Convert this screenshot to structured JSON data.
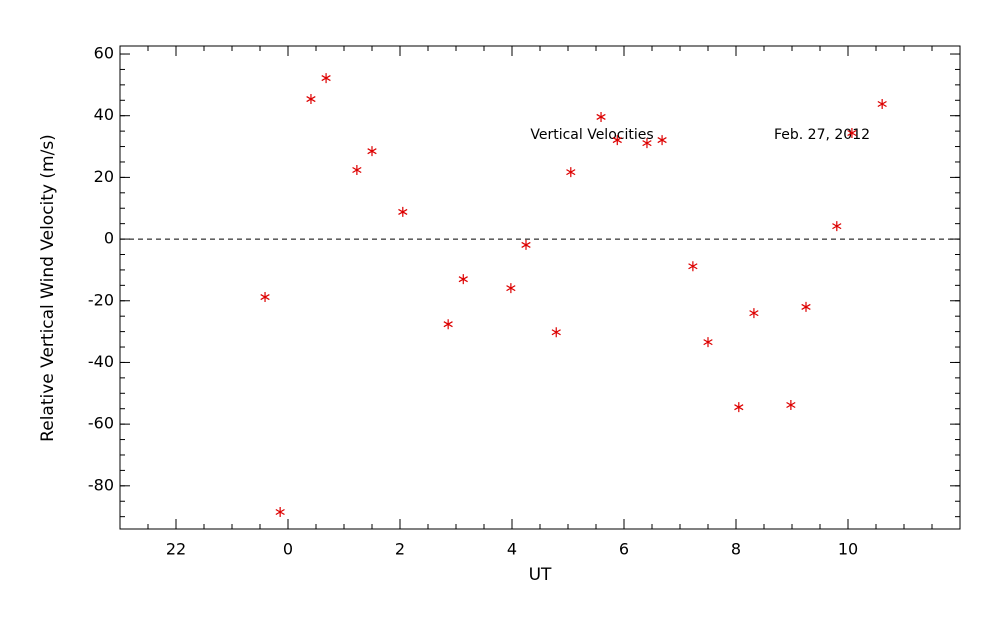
{
  "chart_data": {
    "type": "scatter",
    "xlabel": "UT",
    "ylabel": "Relative Vertical Wind Velocity (m/s)",
    "annotations": [
      "Vertical Velocities",
      "Feb. 27, 2012"
    ],
    "color": "#dd0000",
    "xlim": [
      -3,
      12
    ],
    "ylim": [
      -94,
      62.6
    ],
    "xticks": [
      {
        "value": -2,
        "label": "22"
      },
      0,
      2,
      4,
      6,
      8,
      10
    ],
    "yticks": [
      -80,
      -60,
      -40,
      -20,
      0,
      20,
      40,
      60
    ],
    "x": [
      -0.41,
      -0.14,
      0.41,
      0.68,
      1.23,
      1.5,
      2.05,
      2.86,
      3.13,
      3.98,
      4.25,
      4.79,
      5.05,
      5.59,
      5.88,
      6.41,
      6.68,
      7.23,
      7.5,
      8.05,
      8.32,
      8.98,
      9.25,
      9.8,
      10.07,
      10.61
    ],
    "values": [
      -18.8,
      -88.5,
      45.4,
      52.2,
      22.4,
      28.5,
      8.8,
      -27.6,
      -13,
      -15.9,
      -1.9,
      -30.2,
      21.7,
      39.6,
      32.1,
      31.1,
      32.1,
      -8.8,
      -33.4,
      -54.5,
      -24,
      -53.8,
      -22,
      4.2,
      34.4,
      43.8
    ]
  }
}
